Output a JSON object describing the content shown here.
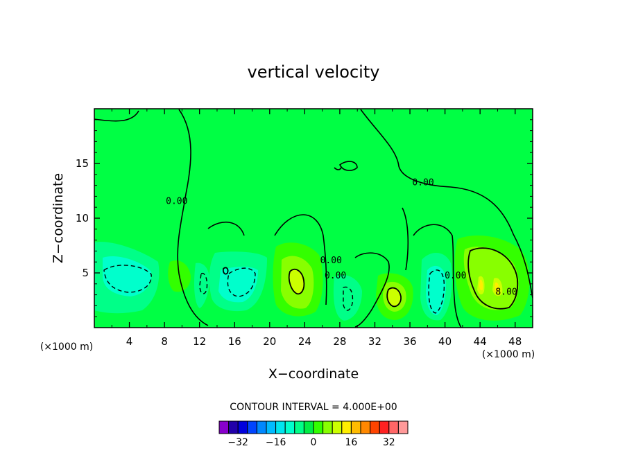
{
  "chart_data": {
    "type": "contour",
    "title": "vertical velocity",
    "xlabel": "X−coordinate",
    "ylabel": "Z−coordinate",
    "x_unit_left": "(×1000 m)",
    "x_unit_right": "(×1000 m)",
    "xlim": [
      0,
      50
    ],
    "ylim": [
      0,
      20
    ],
    "x_ticks": [
      4,
      8,
      12,
      16,
      20,
      24,
      28,
      32,
      36,
      40,
      44,
      48
    ],
    "y_ticks": [
      5,
      10,
      15
    ],
    "contour_interval_text": "CONTOUR INTERVAL = 4.000E+00",
    "contour_labels": [
      {
        "text": "0.00",
        "x": 37.5,
        "y": 13.0
      },
      {
        "text": "0.00",
        "x": 9.4,
        "y": 11.3
      },
      {
        "text": "0.00",
        "x": 27.0,
        "y": 5.9
      },
      {
        "text": "0.00",
        "x": 27.5,
        "y": 4.5
      },
      {
        "text": "0.00",
        "x": 41.2,
        "y": 4.5
      },
      {
        "text": "8.00",
        "x": 47.0,
        "y": 3.0
      }
    ],
    "colorbar": {
      "tick_labels": [
        "−32",
        "−16",
        "0",
        "16",
        "32"
      ],
      "colors": [
        "#8800cc",
        "#2200aa",
        "#0000dd",
        "#0044ff",
        "#0088ff",
        "#00bbff",
        "#00e5ee",
        "#00ffcc",
        "#00ff88",
        "#00ee44",
        "#33ff00",
        "#88ff00",
        "#ccff00",
        "#ffee00",
        "#ffbb00",
        "#ff8800",
        "#ff4400",
        "#ff2222",
        "#ff6666",
        "#ff9999"
      ]
    },
    "fill_colors": {
      "background": "#00ff44",
      "neg4": "#00ff88",
      "neg8": "#00ffcc",
      "pos4": "#33ff00",
      "pos8": "#88ff00",
      "pos12": "#ccff00",
      "pos16": "#ffee00"
    }
  }
}
